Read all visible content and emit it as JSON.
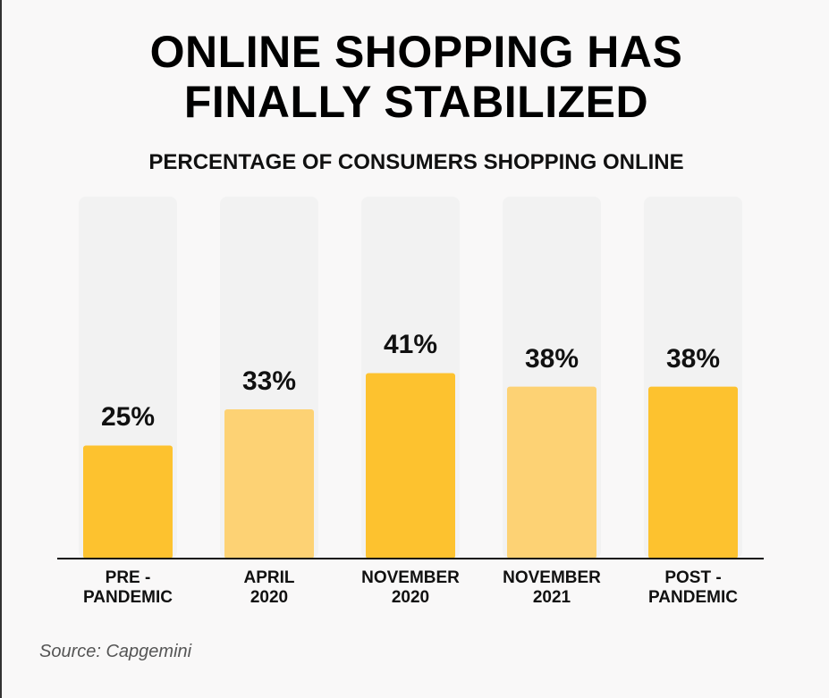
{
  "chart_data": {
    "type": "bar",
    "title": "ONLINE SHOPPING HAS\nFINALLY STABILIZED",
    "subtitle": "PERCENTAGE OF CONSUMERS SHOPPING ONLINE",
    "categories": [
      "PRE -\nPANDEMIC",
      "APRIL\n2020",
      "NOVEMBER\n2020",
      "NOVEMBER\n2021",
      "POST -\nPANDEMIC"
    ],
    "values": [
      25,
      33,
      41,
      38,
      38
    ],
    "value_labels": [
      "25%",
      "33%",
      "41%",
      "38%",
      "38%"
    ],
    "colors": [
      "#fdc22f",
      "#fdd274",
      "#fdc22f",
      "#fdd274",
      "#fdc22f"
    ],
    "ylim": [
      0,
      80
    ],
    "source": "Source: Capgemini"
  }
}
